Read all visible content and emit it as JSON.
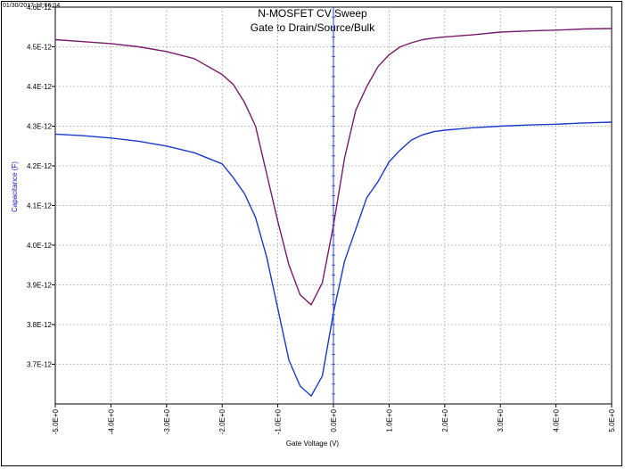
{
  "timestamp": "01/30/2017 12:56:04",
  "chart_data": {
    "type": "line",
    "title": "N-MOSFET CV Sweep",
    "subtitle": "Gate to Drain/Source/Bulk",
    "xlabel": "Gate Voltage (V)",
    "ylabel": "Capacitance (F)",
    "xlim": [
      -5.0,
      5.0
    ],
    "ylim": [
      3.6e-12,
      4.6e-12
    ],
    "grid": true,
    "x_ticks": [
      -5,
      -4,
      -3,
      -2,
      -1,
      0,
      1,
      2,
      3,
      4,
      5
    ],
    "x_tick_labels": [
      "-5.0E+0",
      "-4.0E+0",
      "-3.0E+0",
      "-2.0E+0",
      "-1.0E+0",
      "0.0E+0",
      "1.0E+0",
      "2.0E+0",
      "3.0E+0",
      "4.0E+0",
      "5.0E+0"
    ],
    "y_ticks": [
      3.7e-12,
      3.8e-12,
      3.9e-12,
      4e-12,
      4.1e-12,
      4.2e-12,
      4.3e-12,
      4.4e-12,
      4.5e-12,
      4.6e-12
    ],
    "y_tick_labels": [
      "3.7E-12",
      "3.8E-12",
      "3.9E-12",
      "4.0E-12",
      "4.1E-12",
      "4.2E-12",
      "4.3E-12",
      "4.4E-12",
      "4.5E-12",
      "4.6E-12"
    ],
    "series": [
      {
        "color": "#7a1a6e",
        "x": [
          -5.0,
          -4.5,
          -4.0,
          -3.5,
          -3.0,
          -2.5,
          -2.0,
          -1.8,
          -1.6,
          -1.4,
          -1.2,
          -1.0,
          -0.8,
          -0.6,
          -0.4,
          -0.2,
          0.0,
          0.2,
          0.4,
          0.6,
          0.8,
          1.0,
          1.2,
          1.4,
          1.6,
          1.8,
          2.0,
          2.5,
          3.0,
          3.5,
          4.0,
          4.5,
          5.0
        ],
        "y": [
          4.518e-12,
          4.513e-12,
          4.508e-12,
          4.5e-12,
          4.488e-12,
          4.47e-12,
          4.43e-12,
          4.405e-12,
          4.36e-12,
          4.3e-12,
          4.18e-12,
          4.06e-12,
          3.95e-12,
          3.875e-12,
          3.85e-12,
          3.905e-12,
          4.05e-12,
          4.22e-12,
          4.34e-12,
          4.4e-12,
          4.45e-12,
          4.48e-12,
          4.5e-12,
          4.51e-12,
          4.518e-12,
          4.522e-12,
          4.525e-12,
          4.53e-12,
          4.537e-12,
          4.54e-12,
          4.542e-12,
          4.545e-12,
          4.546e-12
        ]
      },
      {
        "color": "#1a3acc",
        "x": [
          -5.0,
          -4.5,
          -4.0,
          -3.5,
          -3.0,
          -2.5,
          -2.0,
          -1.8,
          -1.6,
          -1.4,
          -1.2,
          -1.0,
          -0.8,
          -0.6,
          -0.4,
          -0.2,
          0.0,
          0.2,
          0.4,
          0.6,
          0.8,
          1.0,
          1.2,
          1.4,
          1.6,
          1.8,
          2.0,
          2.5,
          3.0,
          3.5,
          4.0,
          4.5,
          5.0
        ],
        "y": [
          4.28e-12,
          4.276e-12,
          4.27e-12,
          4.262e-12,
          4.25e-12,
          4.233e-12,
          4.205e-12,
          4.17e-12,
          4.13e-12,
          4.07e-12,
          3.97e-12,
          3.84e-12,
          3.71e-12,
          3.645e-12,
          3.62e-12,
          3.67e-12,
          3.83e-12,
          3.96e-12,
          4.04e-12,
          4.12e-12,
          4.16e-12,
          4.21e-12,
          4.24e-12,
          4.265e-12,
          4.278e-12,
          4.286e-12,
          4.29e-12,
          4.296e-12,
          4.3e-12,
          4.303e-12,
          4.305e-12,
          4.308e-12,
          4.31e-12
        ]
      }
    ]
  }
}
